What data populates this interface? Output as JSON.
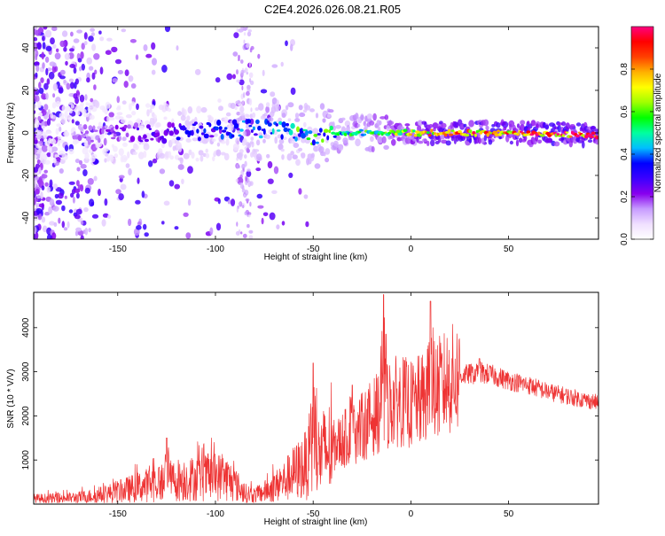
{
  "figure": {
    "title": "C2E4.2026.026.08.21.R05"
  },
  "chart_data": [
    {
      "type": "heatmap",
      "name": "spectrogram",
      "xlabel": "Height of straight line (km)",
      "ylabel": "Frequency (Hz)",
      "xlim": [
        -193,
        96
      ],
      "ylim": [
        -50,
        50
      ],
      "x_ticks": [
        -150,
        -100,
        -50,
        0,
        50
      ],
      "y_ticks": [
        40,
        20,
        0,
        -20,
        -40
      ],
      "colorbar": {
        "label": "Normalized spectral amplitude",
        "range": [
          0.0,
          1.0
        ],
        "ticks": [
          0.0,
          0.2,
          0.4,
          0.6,
          0.8
        ],
        "colormap": [
          "#ffffff",
          "#f0e0ff",
          "#c79bff",
          "#8800ee",
          "#3b00ff",
          "#0000ff",
          "#00bfff",
          "#00ff9f",
          "#00ff00",
          "#9fff00",
          "#ffff00",
          "#ffb000",
          "#ff4000",
          "#ff0000",
          "#ff0080"
        ]
      },
      "ridge": [
        {
          "x": -190,
          "freq": 0,
          "amp": 0.1
        },
        {
          "x": -150,
          "freq": 0,
          "amp": 0.2
        },
        {
          "x": -120,
          "freq": 0,
          "amp": 0.3
        },
        {
          "x": -90,
          "freq": 2,
          "amp": 0.35
        },
        {
          "x": -70,
          "freq": 2,
          "amp": 0.4
        },
        {
          "x": -50,
          "freq": -2,
          "amp": 0.4
        },
        {
          "x": -30,
          "freq": 0,
          "amp": 0.5
        },
        {
          "x": -10,
          "freq": 0,
          "amp": 0.6
        },
        {
          "x": 10,
          "freq": 0,
          "amp": 0.75
        },
        {
          "x": 30,
          "freq": 0,
          "amp": 0.85
        },
        {
          "x": 60,
          "freq": 0,
          "amp": 0.85
        },
        {
          "x": 95,
          "freq": -1,
          "amp": 0.9
        }
      ]
    },
    {
      "type": "line",
      "name": "snr",
      "xlabel": "Height of straight line (km)",
      "ylabel": "SNR (10 * V/V)",
      "xlim": [
        -193,
        96
      ],
      "ylim": [
        0,
        4800
      ],
      "x_ticks": [
        -150,
        -100,
        -50,
        0,
        50
      ],
      "y_ticks": [
        1000,
        2000,
        3000,
        4000
      ],
      "color": "#ee3333",
      "series": [
        {
          "name": "SNR",
          "x": [
            -193,
            -180,
            -170,
            -160,
            -150,
            -140,
            -130,
            -120,
            -110,
            -100,
            -95,
            -90,
            -85,
            -80,
            -75,
            -70,
            -65,
            -60,
            -55,
            -50,
            -45,
            -40,
            -35,
            -30,
            -25,
            -20,
            -15,
            -10,
            -5,
            0,
            5,
            10,
            15,
            20,
            25,
            30,
            35,
            40,
            50,
            60,
            70,
            80,
            90,
            96
          ],
          "y": [
            120,
            130,
            150,
            200,
            280,
            380,
            480,
            550,
            580,
            620,
            600,
            450,
            250,
            200,
            280,
            380,
            520,
            700,
            850,
            1000,
            1150,
            1300,
            1450,
            1600,
            1750,
            1950,
            2150,
            2300,
            2350,
            2250,
            2350,
            2500,
            2650,
            2800,
            2900,
            2950,
            2950,
            2950,
            2800,
            2700,
            2550,
            2450,
            2350,
            2300
          ],
          "spikes": [
            {
              "x": -125,
              "y": 1500
            },
            {
              "x": -50,
              "y": 3200
            },
            {
              "x": -30,
              "y": 2700
            },
            {
              "x": -14,
              "y": 4750
            },
            {
              "x": 10,
              "y": 4600
            },
            {
              "x": 35,
              "y": 3300
            }
          ]
        }
      ]
    }
  ]
}
